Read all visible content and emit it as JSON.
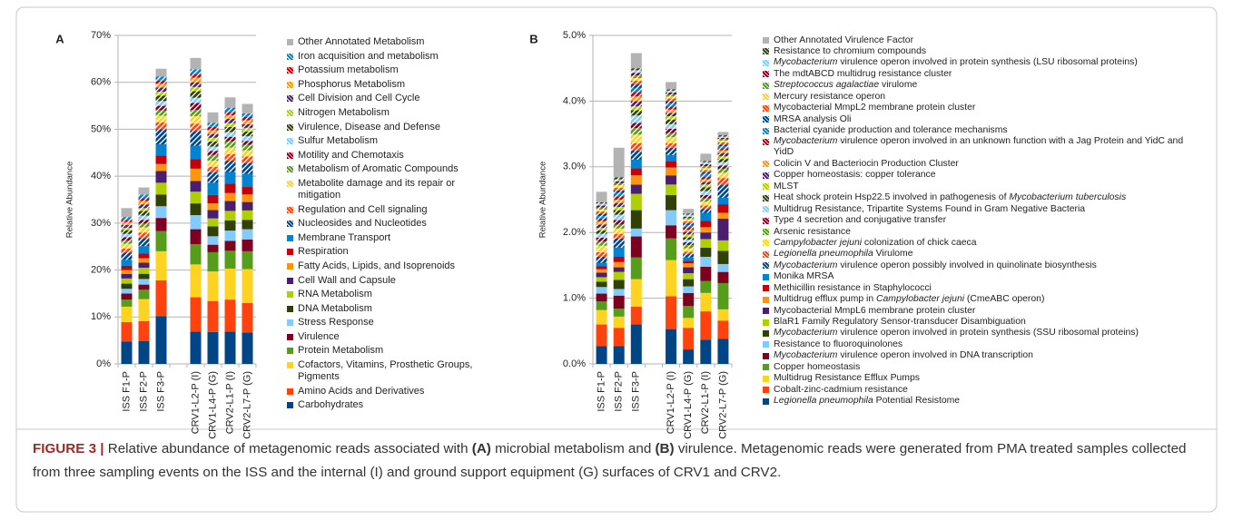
{
  "chart_data": [
    {
      "type": "bar",
      "stacked": true,
      "panel": "A",
      "y_label": "Relative Abundance",
      "grid": true,
      "categories": [
        "ISS F1-P",
        "ISS F2-P",
        "ISS F3-P",
        null,
        "CRV1-L2-P (I)",
        "CRV1-L4-P (G)",
        "CRV2-L1-P (I)",
        "CRV2-L7-P (G)"
      ],
      "ylim": [
        0,
        70
      ],
      "yticks": [
        {
          "value": 0,
          "label": "0%"
        },
        {
          "value": 10,
          "label": "10%"
        },
        {
          "value": 20,
          "label": "20%"
        },
        {
          "value": 30,
          "label": "30%"
        },
        {
          "value": 40,
          "label": "40%"
        },
        {
          "value": 50,
          "label": "50%"
        },
        {
          "value": 60,
          "label": "60%"
        },
        {
          "value": 70,
          "label": "70%"
        }
      ],
      "series": [
        {
          "name": "Carbohydrates",
          "color": "#004586",
          "values": [
            4.8,
            4.9,
            10.2,
            null,
            6.9,
            6.8,
            6.9,
            6.7
          ]
        },
        {
          "name": "Amino Acids and Derivatives",
          "color": "#ff420e",
          "values": [
            4.1,
            4.2,
            7.6,
            null,
            7.3,
            6.6,
            6.8,
            6.3
          ]
        },
        {
          "name": "Cofactors, Vitamins, Prosthetic Groups, Pigments",
          "color": "#ffd320",
          "values": [
            3.3,
            4.7,
            6.2,
            null,
            7.0,
            6.3,
            6.6,
            7.2
          ]
        },
        {
          "name": "Protein Metabolism",
          "color": "#579d1c",
          "values": [
            1.5,
            2.0,
            4.3,
            null,
            4.3,
            4.1,
            3.8,
            3.8
          ]
        },
        {
          "name": "Virulence",
          "color": "#7e0021",
          "values": [
            1.3,
            1.1,
            2.8,
            null,
            3.2,
            1.6,
            2.1,
            2.5
          ]
        },
        {
          "name": "Stress Response",
          "color": "#83caff",
          "values": [
            1.0,
            1.2,
            2.5,
            null,
            3.0,
            1.8,
            2.2,
            2.2
          ]
        },
        {
          "name": "DNA Metabolism",
          "color": "#314004",
          "values": [
            1.1,
            1.1,
            2.5,
            null,
            2.5,
            2.1,
            2.2,
            2.0
          ]
        },
        {
          "name": "RNA Metabolism",
          "color": "#aecf00",
          "values": [
            1.1,
            1.3,
            2.5,
            null,
            2.5,
            1.7,
            2.0,
            2.0
          ]
        },
        {
          "name": "Cell Wall and Capsule",
          "color": "#4b1f6f",
          "values": [
            1.0,
            1.1,
            2.5,
            null,
            2.3,
            1.8,
            2.1,
            1.8
          ]
        },
        {
          "name": "Fatty Acids, Lipids, and Isoprenoids",
          "color": "#ff950e",
          "values": [
            0.8,
            0.9,
            1.5,
            null,
            2.6,
            1.4,
            1.7,
            1.6
          ]
        },
        {
          "name": "Respiration",
          "color": "#c5000b",
          "values": [
            0.9,
            1.0,
            1.8,
            null,
            2.0,
            1.8,
            2.0,
            1.6
          ]
        },
        {
          "name": "Membrane Transport",
          "color": "#0084d1",
          "values": [
            1.3,
            1.6,
            2.4,
            null,
            2.9,
            2.6,
            2.5,
            2.8
          ]
        },
        {
          "name": "Nucleosides and Nucleotides",
          "color": "#004586",
          "hatch": true,
          "values": [
            1.5,
            1.7,
            3.2,
            null,
            3.1,
            2.2,
            2.4,
            2.3
          ]
        },
        {
          "name": "Regulation and Cell signaling",
          "color": "#ff420e",
          "hatch": true,
          "values": [
            0.9,
            1.2,
            1.5,
            null,
            1.6,
            1.2,
            1.4,
            1.4
          ]
        },
        {
          "name": "Metabolite damage and its repair or mitigation",
          "color": "#ffd320",
          "hatch": true,
          "values": [
            1.0,
            1.1,
            1.4,
            null,
            1.6,
            1.3,
            1.4,
            1.3
          ]
        },
        {
          "name": "Metabolism of Aromatic Compounds",
          "color": "#579d1c",
          "hatch": true,
          "values": [
            0.7,
            0.8,
            1.1,
            null,
            1.3,
            1.2,
            1.3,
            1.2
          ]
        },
        {
          "name": "Motility and Chemotaxis",
          "color": "#7e0021",
          "hatch": true,
          "values": [
            0.7,
            0.8,
            1.0,
            null,
            1.5,
            0.9,
            1.0,
            0.8
          ]
        },
        {
          "name": "Sulfur Metabolism",
          "color": "#83caff",
          "hatch": true,
          "values": [
            0.7,
            0.9,
            1.0,
            null,
            1.1,
            0.9,
            1.0,
            1.0
          ]
        },
        {
          "name": "Virulence, Disease and Defense",
          "color": "#314004",
          "hatch": true,
          "values": [
            0.8,
            1.0,
            1.2,
            null,
            1.4,
            1.1,
            1.1,
            1.0
          ]
        },
        {
          "name": "Nitrogen Metabolism",
          "color": "#aecf00",
          "hatch": true,
          "values": [
            0.5,
            0.6,
            0.8,
            null,
            0.9,
            0.8,
            0.8,
            0.8
          ]
        },
        {
          "name": "Cell Division and Cell Cycle",
          "color": "#4b1f6f",
          "hatch": true,
          "values": [
            0.6,
            0.8,
            0.9,
            null,
            1.0,
            0.8,
            0.9,
            0.8
          ]
        },
        {
          "name": "Phosphorus Metabolism",
          "color": "#ff950e",
          "hatch": true,
          "values": [
            0.6,
            0.7,
            0.8,
            null,
            1.0,
            0.8,
            0.8,
            0.8
          ]
        },
        {
          "name": "Potassium metabolism",
          "color": "#c5000b",
          "hatch": true,
          "values": [
            0.5,
            0.6,
            0.7,
            null,
            0.8,
            0.7,
            0.7,
            0.7
          ]
        },
        {
          "name": "Iron acquisition and metabolism",
          "color": "#0084d1",
          "hatch": true,
          "values": [
            0.6,
            0.8,
            0.8,
            null,
            1.0,
            0.9,
            0.9,
            0.8
          ]
        },
        {
          "name": "Other Annotated Metabolism",
          "color": "#b3b3b3",
          "values": [
            1.9,
            1.5,
            1.7,
            null,
            2.4,
            2.2,
            2.2,
            2.0
          ]
        }
      ]
    },
    {
      "type": "bar",
      "stacked": true,
      "panel": "B",
      "y_label": "Relative Abundance",
      "grid": true,
      "categories": [
        "ISS F1-P",
        "ISS F2-P",
        "ISS F3-P",
        null,
        "CRV1-L2-P (I)",
        "CRV1-L4-P (G)",
        "CRV2-L1-P (I)",
        "CRV2-L7-P (G)"
      ],
      "ylim": [
        0,
        5
      ],
      "yticks": [
        {
          "value": 0,
          "label": "0.0%"
        },
        {
          "value": 1,
          "label": "1.0%"
        },
        {
          "value": 2,
          "label": "2.0%"
        },
        {
          "value": 3,
          "label": "3.0%"
        },
        {
          "value": 4,
          "label": "4.0%"
        },
        {
          "value": 5,
          "label": "5.0%"
        }
      ],
      "series": [
        {
          "name": "Legionella pneumophila Potential Resistome",
          "italic": "Legionella pneumophila",
          "color": "#004586",
          "values": [
            0.27,
            0.27,
            0.6,
            null,
            0.53,
            0.22,
            0.37,
            0.38
          ]
        },
        {
          "name": "Cobalt-zinc-cadmium resistance",
          "color": "#ff420e",
          "values": [
            0.33,
            0.28,
            0.27,
            null,
            0.5,
            0.33,
            0.43,
            0.28
          ]
        },
        {
          "name": "Multidrug Resistance Efflux Pumps",
          "color": "#ffd320",
          "values": [
            0.22,
            0.17,
            0.42,
            null,
            0.55,
            0.15,
            0.28,
            0.17
          ]
        },
        {
          "name": "Copper homeostasis",
          "color": "#579d1c",
          "values": [
            0.13,
            0.12,
            0.33,
            null,
            0.33,
            0.18,
            0.18,
            0.4
          ]
        },
        {
          "name": "Mycobacterium virulence operon involved in DNA transcription",
          "italic": "Mycobacterium",
          "color": "#7e0021",
          "values": [
            0.12,
            0.2,
            0.32,
            null,
            0.2,
            0.2,
            0.22,
            0.17
          ]
        },
        {
          "name": "Resistance to fluoroquinolones",
          "color": "#83caff",
          "values": [
            0.1,
            0.1,
            0.12,
            null,
            0.23,
            0.1,
            0.15,
            0.12
          ]
        },
        {
          "name": "Mycobacterium virulence operon involved in protein synthesis (SSU ribosomal proteins)",
          "italic": "Mycobacterium",
          "color": "#314004",
          "values": [
            0.08,
            0.14,
            0.28,
            null,
            0.23,
            0.11,
            0.14,
            0.2
          ]
        },
        {
          "name": "BlaR1 Family Regulatory Sensor-transducer Disambiguation",
          "color": "#aecf00",
          "values": [
            0.07,
            0.12,
            0.25,
            null,
            0.16,
            0.09,
            0.13,
            0.16
          ]
        },
        {
          "name": "Mycobacterial MmpL6 membrane protein cluster",
          "color": "#4b1f6f",
          "values": [
            0.07,
            0.07,
            0.14,
            null,
            0.14,
            0.09,
            0.1,
            0.33
          ]
        },
        {
          "name": "Multidrug efflux pump in Campylobacter jejuni (CmeABC operon)",
          "italic": "Campylobacter jejuni",
          "color": "#ff950e",
          "values": [
            0.05,
            0.08,
            0.14,
            null,
            0.12,
            0.06,
            0.08,
            0.09
          ]
        },
        {
          "name": "Methicillin resistance in Staphylococci",
          "color": "#c5000b",
          "values": [
            0.05,
            0.08,
            0.11,
            null,
            0.09,
            0.04,
            0.1,
            0.13
          ]
        },
        {
          "name": "Monika MRSA",
          "color": "#0084d1",
          "values": [
            0.05,
            0.14,
            0.13,
            null,
            0.1,
            0.05,
            0.12,
            0.1
          ]
        },
        {
          "name": "Mycobacterium virulence operon possibly involved in quinolinate biosynthesis",
          "italic": "Mycobacterium",
          "color": "#004586",
          "hatch": true,
          "values": [
            0.09,
            0.14,
            0.14,
            null,
            0.11,
            0.05,
            0.06,
            0.2
          ]
        },
        {
          "name": "Legionella pneumophila Virulome",
          "italic": "Legionella pneumophila",
          "color": "#ff420e",
          "hatch": true,
          "values": [
            0.07,
            0.07,
            0.11,
            null,
            0.07,
            0.04,
            0.05,
            0.1
          ]
        },
        {
          "name": "Campylobacter jejuni colonization of chick caeca",
          "italic": "Campylobacter jejuni",
          "color": "#ffd320",
          "hatch": true,
          "values": [
            0.1,
            0.08,
            0.13,
            null,
            0.09,
            0.05,
            0.06,
            0.08
          ]
        },
        {
          "name": "Arsenic resistance",
          "color": "#579d1c",
          "hatch": true,
          "values": [
            0.06,
            0.06,
            0.1,
            null,
            0.06,
            0.05,
            0.05,
            0.06
          ]
        },
        {
          "name": "Type 4 secretion and conjugative transfer",
          "color": "#7e0021",
          "hatch": true,
          "values": [
            0.06,
            0.07,
            0.08,
            null,
            0.07,
            0.04,
            0.05,
            0.05
          ]
        },
        {
          "name": "Multidrug Resistance, Tripartite Systems Found in Gram Negative Bacteria",
          "color": "#83caff",
          "hatch": true,
          "values": [
            0.06,
            0.08,
            0.11,
            null,
            0.07,
            0.04,
            0.06,
            0.05
          ]
        },
        {
          "name": "Heat shock protein Hsp22.5 involved in pathogenesis of Mycobacterium tuberculosis",
          "italic": "Mycobacterium tuberculosis",
          "color": "#314004",
          "hatch": true,
          "values": [
            0.05,
            0.07,
            0.08,
            null,
            0.07,
            0.04,
            0.06,
            0.05
          ]
        },
        {
          "name": "MLST",
          "color": "#aecf00",
          "hatch": true,
          "values": [
            0.04,
            0.05,
            0.06,
            null,
            0.05,
            0.04,
            0.04,
            0.04
          ]
        },
        {
          "name": "Copper homeostasis: copper tolerance",
          "color": "#4b1f6f",
          "hatch": true,
          "values": [
            0.05,
            0.06,
            0.08,
            null,
            0.05,
            0.04,
            0.04,
            0.05
          ]
        },
        {
          "name": "Colicin V and Bacteriocin Production Cluster",
          "color": "#ff950e",
          "hatch": true,
          "values": [
            0.05,
            0.05,
            0.07,
            null,
            0.05,
            0.03,
            0.04,
            0.04
          ]
        },
        {
          "name": "Mycobacterium virulence operon involved in an unknown function with a Jag Protein and YidC and YidD",
          "italic": "Mycobacterium",
          "color": "#c5000b",
          "hatch": true,
          "values": [
            0.04,
            0.05,
            0.07,
            null,
            0.05,
            0.04,
            0.04,
            0.03
          ]
        },
        {
          "name": "Bacterial cyanide production and tolerance mechanisms",
          "color": "#0084d1",
          "hatch": true,
          "values": [
            0.04,
            0.05,
            0.06,
            null,
            0.04,
            0.03,
            0.04,
            0.03
          ]
        },
        {
          "name": "MRSA analysis Oli",
          "color": "#004586",
          "hatch": true,
          "values": [
            0.04,
            0.04,
            0.06,
            null,
            0.04,
            0.03,
            0.03,
            0.03
          ]
        },
        {
          "name": "Mycobacterial MmpL2 membrane protein cluster",
          "color": "#ff420e",
          "hatch": true,
          "values": [
            0.03,
            0.04,
            0.05,
            null,
            0.04,
            0.03,
            0.03,
            0.03
          ]
        },
        {
          "name": "Mercury resistance operon",
          "color": "#ffd320",
          "hatch": true,
          "values": [
            0.03,
            0.04,
            0.04,
            null,
            0.03,
            0.03,
            0.03,
            0.03
          ]
        },
        {
          "name": "Streptococcus agalactiae virulome",
          "italic": "Streptococcus agalactiae",
          "color": "#579d1c",
          "hatch": true,
          "values": [
            0.03,
            0.03,
            0.04,
            null,
            0.03,
            0.02,
            0.03,
            0.02
          ]
        },
        {
          "name": "The mdtABCD multidrug resistance cluster",
          "color": "#7e0021",
          "hatch": true,
          "values": [
            0.03,
            0.03,
            0.04,
            null,
            0.03,
            0.02,
            0.03,
            0.02
          ]
        },
        {
          "name": "Mycobacterium virulence operon involved in protein synthesis (LSU ribosomal proteins)",
          "italic": "Mycobacterium",
          "color": "#83caff",
          "hatch": true,
          "values": [
            0.03,
            0.03,
            0.04,
            null,
            0.03,
            0.03,
            0.03,
            0.02
          ]
        },
        {
          "name": "Resistance to chromium compounds",
          "color": "#314004",
          "hatch": true,
          "values": [
            0.02,
            0.03,
            0.03,
            null,
            0.02,
            0.02,
            0.02,
            0.02
          ]
        },
        {
          "name": "Other Annotated Virulence Factor",
          "color": "#b3b3b3",
          "values": [
            0.16,
            0.45,
            0.23,
            null,
            0.11,
            0.07,
            0.11,
            0.05
          ]
        }
      ]
    }
  ],
  "caption": {
    "label": "FIGURE 3 |",
    "parts": [
      {
        "text": "Relative abundance of metagenomic reads associated with ",
        "bold": false
      },
      {
        "text": "(A)",
        "bold": true
      },
      {
        "text": " microbial metabolism and ",
        "bold": false
      },
      {
        "text": "(B)",
        "bold": true
      },
      {
        "text": " virulence. Metagenomic reads were generated from PMA treated samples collected from three sampling events on the ISS and the internal (I) and ground support equipment (G) surfaces of CRV1 and CRV2.",
        "bold": false
      }
    ]
  }
}
